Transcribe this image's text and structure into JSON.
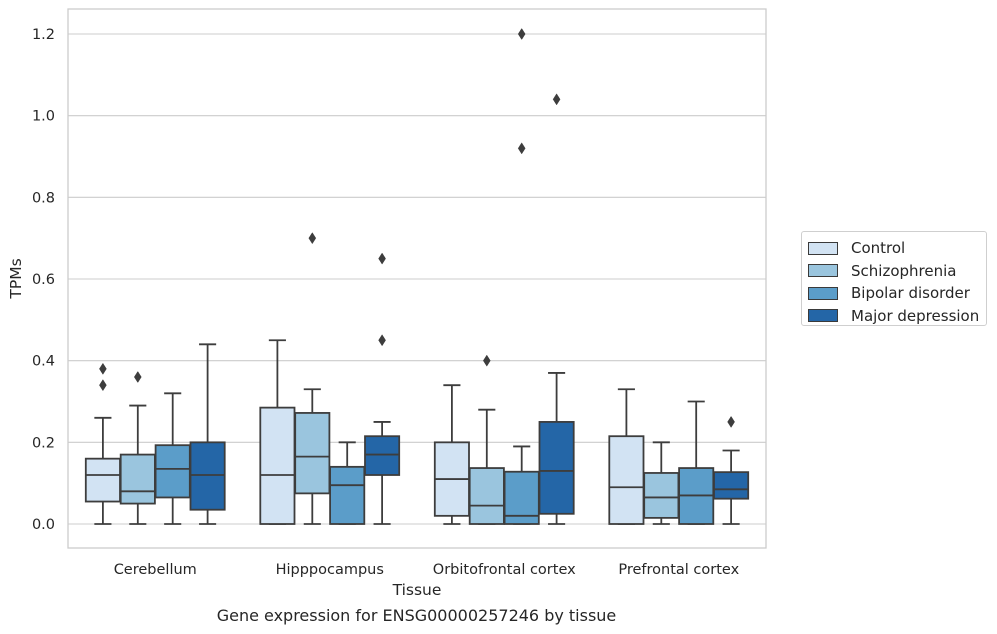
{
  "chart_data": {
    "type": "box",
    "xlabel": "Tissue",
    "ylabel": "TPMs",
    "caption": "Gene expression for ENSG00000257246 by tissue",
    "ylim": [
      -0.06,
      1.26
    ],
    "yticks": [
      0.0,
      0.2,
      0.4,
      0.6,
      0.8,
      1.0,
      1.2
    ],
    "ytick_labels": [
      "0.0",
      "0.2",
      "0.4",
      "0.6",
      "0.8",
      "1.0",
      "1.2"
    ],
    "grid": "horizontal",
    "legend_position": "right",
    "categories": [
      "Cerebellum",
      "Hipppocampus",
      "Orbitofrontal cortex",
      "Prefrontal cortex"
    ],
    "series": [
      {
        "name": "Control",
        "color": "#d2e3f3",
        "boxes": [
          {
            "whislo": 0.0,
            "q1": 0.055,
            "med": 0.12,
            "q3": 0.16,
            "whishi": 0.26,
            "fliers": [
              0.34,
              0.38
            ]
          },
          {
            "whislo": 0.0,
            "q1": 0.0,
            "med": 0.12,
            "q3": 0.285,
            "whishi": 0.45,
            "fliers": []
          },
          {
            "whislo": 0.0,
            "q1": 0.02,
            "med": 0.11,
            "q3": 0.2,
            "whishi": 0.34,
            "fliers": []
          },
          {
            "whislo": 0.0,
            "q1": 0.0,
            "med": 0.09,
            "q3": 0.215,
            "whishi": 0.33,
            "fliers": []
          }
        ]
      },
      {
        "name": "Schizophrenia",
        "color": "#9ac5de",
        "boxes": [
          {
            "whislo": 0.0,
            "q1": 0.05,
            "med": 0.08,
            "q3": 0.17,
            "whishi": 0.29,
            "fliers": [
              0.36
            ]
          },
          {
            "whislo": 0.0,
            "q1": 0.075,
            "med": 0.165,
            "q3": 0.272,
            "whishi": 0.33,
            "fliers": [
              0.7
            ]
          },
          {
            "whislo": 0.0,
            "q1": 0.0,
            "med": 0.045,
            "q3": 0.137,
            "whishi": 0.28,
            "fliers": [
              0.4
            ]
          },
          {
            "whislo": 0.0,
            "q1": 0.015,
            "med": 0.065,
            "q3": 0.125,
            "whishi": 0.2,
            "fliers": []
          }
        ]
      },
      {
        "name": "Bipolar disorder",
        "color": "#5b9dc9",
        "boxes": [
          {
            "whislo": 0.0,
            "q1": 0.065,
            "med": 0.135,
            "q3": 0.193,
            "whishi": 0.32,
            "fliers": []
          },
          {
            "whislo": 0.0,
            "q1": 0.0,
            "med": 0.095,
            "q3": 0.14,
            "whishi": 0.2,
            "fliers": []
          },
          {
            "whislo": 0.0,
            "q1": 0.0,
            "med": 0.02,
            "q3": 0.128,
            "whishi": 0.19,
            "fliers": [
              0.92,
              1.2
            ]
          },
          {
            "whislo": 0.0,
            "q1": 0.0,
            "med": 0.07,
            "q3": 0.137,
            "whishi": 0.3,
            "fliers": []
          }
        ]
      },
      {
        "name": "Major depression",
        "color": "#2466a7",
        "boxes": [
          {
            "whislo": 0.0,
            "q1": 0.035,
            "med": 0.12,
            "q3": 0.2,
            "whishi": 0.44,
            "fliers": []
          },
          {
            "whislo": 0.0,
            "q1": 0.12,
            "med": 0.17,
            "q3": 0.215,
            "whishi": 0.25,
            "fliers": [
              0.45,
              0.65
            ]
          },
          {
            "whislo": 0.0,
            "q1": 0.025,
            "med": 0.13,
            "q3": 0.25,
            "whishi": 0.37,
            "fliers": [
              1.04
            ]
          },
          {
            "whislo": 0.0,
            "q1": 0.062,
            "med": 0.085,
            "q3": 0.127,
            "whishi": 0.18,
            "fliers": [
              0.25
            ]
          }
        ]
      }
    ]
  }
}
